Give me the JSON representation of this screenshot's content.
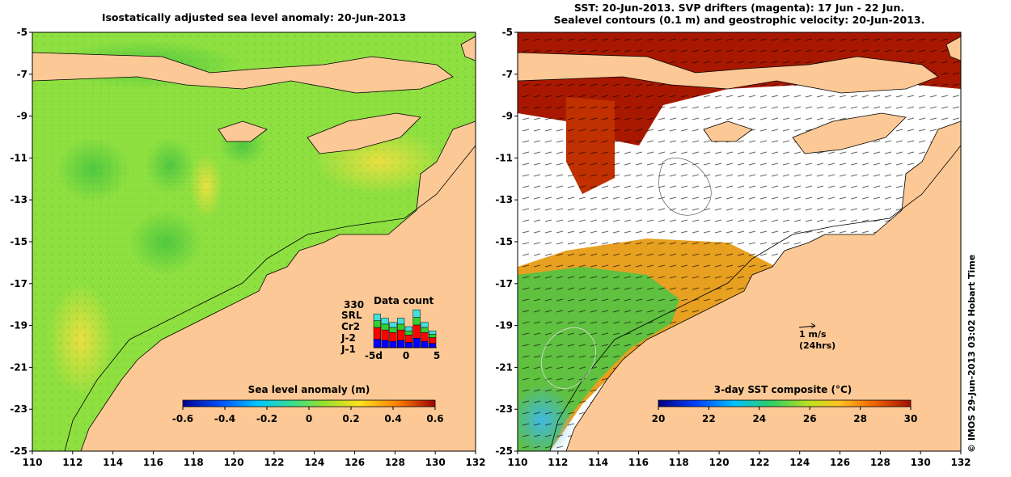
{
  "left_map": {
    "title": "Isostatically adjusted sea level anomaly: 20-Jun-2013",
    "x_ticks": [
      "110",
      "112",
      "114",
      "116",
      "118",
      "120",
      "122",
      "124",
      "126",
      "128",
      "130",
      "132"
    ],
    "y_ticks": [
      "-5",
      "-7",
      "-9",
      "-11",
      "-13",
      "-15",
      "-17",
      "-19",
      "-21",
      "-23",
      "-25"
    ],
    "colorbar": {
      "title": "Sea level anomaly (m)",
      "ticks": [
        "-0.6",
        "-0.4",
        "-0.2",
        "0",
        "0.2",
        "0.4",
        "0.6"
      ]
    },
    "data_count": {
      "title": "Data count",
      "total": "330",
      "satellites": [
        {
          "name": "SRL",
          "color": "#40e0e0"
        },
        {
          "name": "Cr2",
          "color": "#30d030"
        },
        {
          "name": "J-2",
          "color": "#ff0000"
        },
        {
          "name": "J-1",
          "color": "#0000ff"
        }
      ],
      "x_labels": [
        "-5d",
        "0",
        "5"
      ],
      "bars": [
        8,
        7,
        6,
        7,
        5,
        9,
        6,
        4
      ]
    }
  },
  "right_map": {
    "title_line1": "SST: 20-Jun-2013. SVP drifters (magenta): 17 Jun - 22 Jun.",
    "title_line2": "Sealevel contours (0.1 m) and geostrophic velocity: 20-Jun-2013.",
    "x_ticks": [
      "110",
      "112",
      "114",
      "116",
      "118",
      "120",
      "122",
      "124",
      "126",
      "128",
      "130",
      "132"
    ],
    "y_ticks": [
      "-5",
      "-7",
      "-9",
      "-11",
      "-13",
      "-15",
      "-17",
      "-19",
      "-21",
      "-23",
      "-25"
    ],
    "colorbar": {
      "title": "3-day SST composite (°C)",
      "ticks": [
        "20",
        "22",
        "24",
        "26",
        "28",
        "30"
      ]
    },
    "velocity_scale": {
      "line1": "1 m/s",
      "line2": "(24hrs)"
    }
  },
  "credit": "© IMOS 29-Jun-2013 03:02 Hobart Time",
  "colors": {
    "land": "#fcc895",
    "sla_green": "#7ee045",
    "sst_warm": "#a81800",
    "sst_mid": "#e89a20"
  }
}
